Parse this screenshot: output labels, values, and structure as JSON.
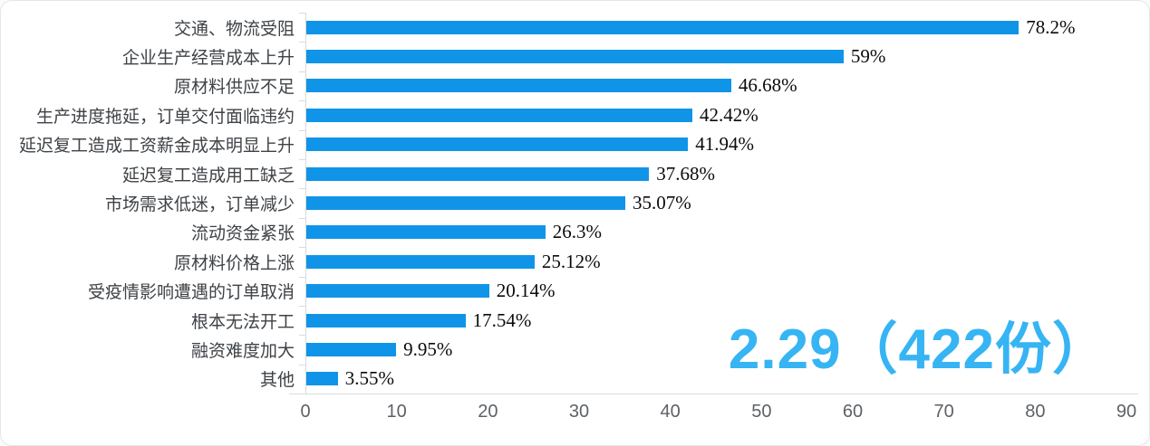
{
  "chart_data": {
    "type": "bar",
    "orientation": "horizontal",
    "title": "",
    "xlabel": "",
    "ylabel": "",
    "categories": [
      "交通、物流受阻",
      "企业生产经营成本上升",
      "原材料供应不足",
      "生产进度拖延，订单交付面临违约",
      "延迟复工造成工资薪金成本明显上升",
      "延迟复工造成用工缺乏",
      "市场需求低迷，订单减少",
      "流动资金紧张",
      "原材料价格上涨",
      "受疫情影响遭遇的订单取消",
      "根本无法开工",
      "融资难度加大",
      "其他"
    ],
    "values": [
      78.2,
      59,
      46.68,
      42.42,
      41.94,
      37.68,
      35.07,
      26.3,
      25.12,
      20.14,
      17.54,
      9.95,
      3.55
    ],
    "value_labels": [
      "78.2%",
      "59%",
      "46.68%",
      "42.42%",
      "41.94%",
      "37.68%",
      "35.07%",
      "26.3%",
      "25.12%",
      "20.14%",
      "17.54%",
      "9.95%",
      "3.55%"
    ],
    "xlim": [
      0,
      90
    ],
    "x_ticks": [
      "0",
      "10",
      "20",
      "30",
      "40",
      "50",
      "60",
      "70",
      "80",
      "90"
    ],
    "grid": "off",
    "legend": "none"
  },
  "annotation": {
    "text": "2.29（422份）",
    "color": "#36b4f4"
  },
  "colors": {
    "bar": "#1094e8",
    "axis_line": "#d8dbde",
    "tick_label": "#5d6166",
    "category_label": "#3e4246",
    "value_label": "#0b0b0b",
    "card_border": "#e4e6e9"
  }
}
